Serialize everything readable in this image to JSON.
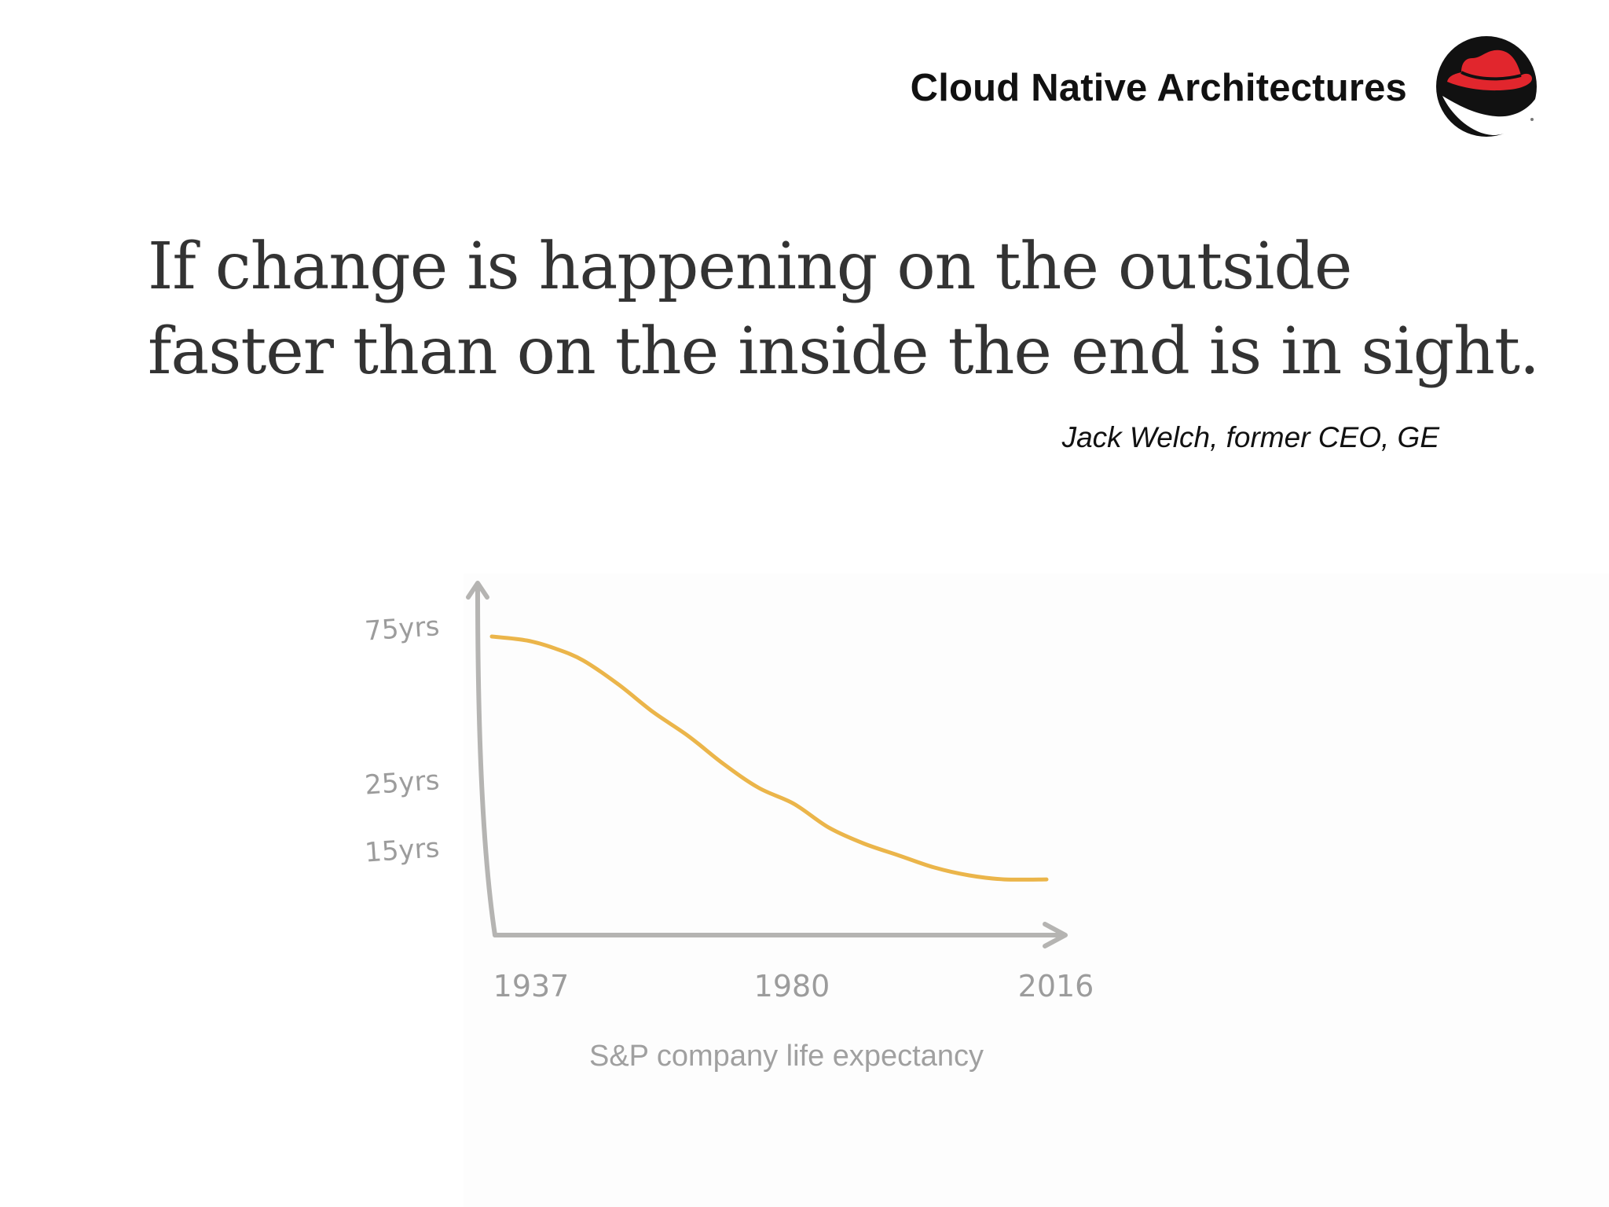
{
  "header": {
    "title": "Cloud Native Architectures",
    "logo_icon": "red-hat-shadowman-icon"
  },
  "quote": {
    "line1": "If change is happening on the outside",
    "line2": "faster than on the inside the end is in sight.",
    "attribution": "Jack Welch, former CEO, GE"
  },
  "colors": {
    "line": "#EBB54A",
    "axis": "#B5B4B2",
    "logo_red": "#E1262D"
  },
  "chart_data": {
    "type": "line",
    "title": "S&P company life expectancy",
    "xlabel": "",
    "ylabel": "",
    "x_ticks": [
      "1937",
      "1980",
      "2016"
    ],
    "y_ticks": [
      "75yrs",
      "25yrs",
      "15yrs"
    ],
    "xlim": [
      1937,
      2016
    ],
    "ylim": [
      0,
      90
    ],
    "grid": false,
    "series": [
      {
        "x": [
          1937,
          1942,
          1946,
          1950,
          1955,
          1960,
          1965,
          1970,
          1975,
          1980,
          1985,
          1990,
          1995,
          2000,
          2005,
          2010,
          2016
        ],
        "values": [
          75,
          74,
          72,
          69,
          63,
          56,
          50,
          43,
          37,
          33,
          27,
          23,
          20,
          17,
          15,
          14,
          14
        ]
      }
    ]
  }
}
